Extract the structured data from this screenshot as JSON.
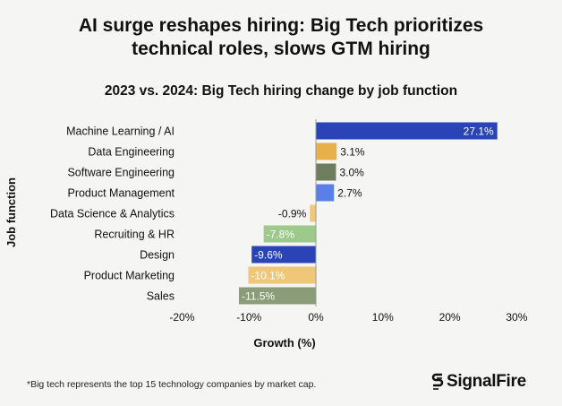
{
  "header": {
    "title_line1": "AI surge reshapes hiring: Big Tech prioritizes",
    "title_line2": "technical roles, slows GTM hiring"
  },
  "chart_data": {
    "type": "bar",
    "orientation": "horizontal",
    "title": "2023 vs. 2024: Big Tech hiring change by job function",
    "xlabel": "Growth (%)",
    "ylabel": "Job function",
    "xlim": [
      -20,
      30
    ],
    "xticks": [
      -20,
      -10,
      0,
      10,
      20,
      30
    ],
    "xtick_labels": [
      "-20%",
      "-10%",
      "0%",
      "10%",
      "20%",
      "30%"
    ],
    "categories": [
      "Machine Learning / AI",
      "Data Engineering",
      "Software Engineering",
      "Product Management",
      "Data Science & Analytics",
      "Recruiting & HR",
      "Design",
      "Product Marketing",
      "Sales"
    ],
    "values": [
      27.1,
      3.1,
      3.0,
      2.7,
      -0.9,
      -7.8,
      -9.6,
      -10.1,
      -11.5
    ],
    "value_labels": [
      "27.1%",
      "3.1%",
      "3.0%",
      "2.7%",
      "-0.9%",
      "-7.8%",
      "-9.6%",
      "-10.1%",
      "-11.5%"
    ],
    "colors": [
      "#2a44b8",
      "#e8b04a",
      "#6f7d5f",
      "#5b7fe8",
      "#f0c778",
      "#9dc98a",
      "#2a44b8",
      "#f0c778",
      "#8a9c78"
    ],
    "grid": false
  },
  "footer": {
    "footnote": "*Big tech represents the top 15 technology companies by market cap.",
    "brand": "SignalFire"
  }
}
